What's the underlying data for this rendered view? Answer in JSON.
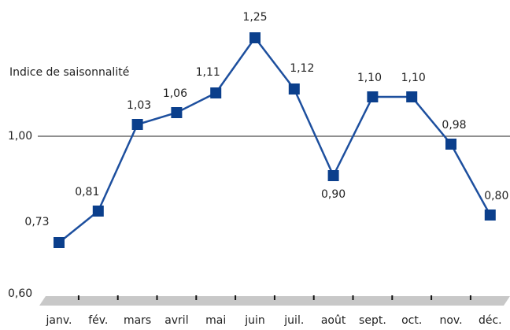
{
  "chart_data": {
    "type": "line",
    "y_label": "Indice de saisonnalité",
    "categories": [
      "janv.",
      "fév.",
      "mars",
      "avril",
      "mai",
      "juin",
      "juil.",
      "août",
      "sept.",
      "oct.",
      "nov.",
      "déc."
    ],
    "values": [
      0.73,
      0.81,
      1.03,
      1.06,
      1.11,
      1.25,
      1.12,
      0.9,
      1.1,
      1.1,
      0.98,
      0.8
    ],
    "value_labels": [
      "0,73",
      "0,81",
      "1,03",
      "1,06",
      "1,11",
      "1,25",
      "1,12",
      "0,90",
      "1,10",
      "1,10",
      "0,98",
      "0,80"
    ],
    "color": "#1d4f9e",
    "ylim": [
      0.6,
      1.3
    ],
    "yticks": [
      {
        "value": 0.6,
        "label": "0,60"
      },
      {
        "value": 1.0,
        "label": "1,00"
      }
    ]
  }
}
